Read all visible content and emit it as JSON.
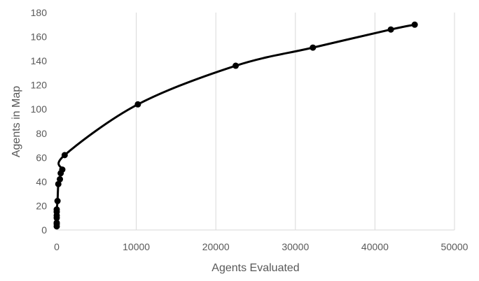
{
  "chart_data": {
    "type": "scatter",
    "title": "",
    "xlabel": "Agents Evaluated",
    "ylabel": "Agents in Map",
    "xlim": [
      0,
      50000
    ],
    "ylim": [
      0,
      180
    ],
    "xticks": [
      0,
      10000,
      20000,
      30000,
      40000,
      50000
    ],
    "xtick_labels": [
      "0",
      "10000",
      "20000",
      "30000",
      "40000",
      "50000"
    ],
    "yticks": [
      0,
      20,
      40,
      60,
      80,
      100,
      120,
      140,
      160,
      180
    ],
    "ytick_labels": [
      "0",
      "20",
      "40",
      "60",
      "80",
      "100",
      "120",
      "140",
      "160",
      "180"
    ],
    "grid": "vertical",
    "legend": "none",
    "series": [
      {
        "color": "#000000",
        "style": "smoothed line with markers",
        "x": [
          0,
          0,
          0,
          0,
          0,
          0,
          0,
          100,
          200,
          400,
          500,
          700,
          1000,
          10200,
          22500,
          32200,
          42000,
          45000
        ],
        "y": [
          3,
          5,
          6,
          10,
          12,
          15,
          17,
          24,
          38,
          42,
          47,
          50,
          62,
          104,
          136,
          151,
          166,
          170
        ]
      }
    ]
  }
}
